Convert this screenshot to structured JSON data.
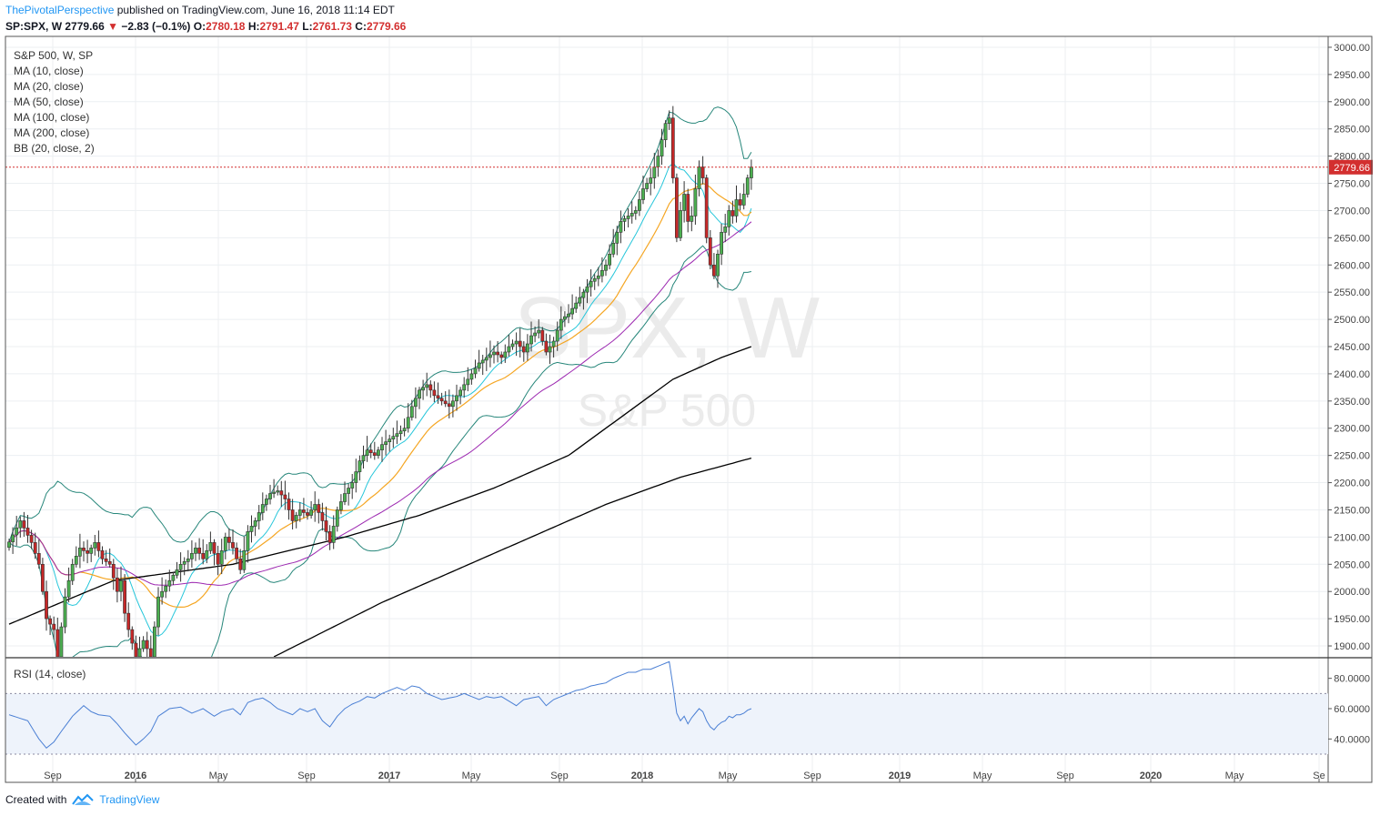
{
  "header": {
    "author": "ThePivotalPerspective",
    "published": "published on TradingView.com, June 16, 2018 11:14 EDT",
    "symbol": "SP:SPX,",
    "interval": "W",
    "last": "2779.66",
    "change": "−2.83 (−0.1%)",
    "o_label": "O:",
    "o_value": "2780.18",
    "h_label": "H:",
    "h_value": "2791.47",
    "l_label": "L:",
    "l_value": "2761.73",
    "c_label": "C:",
    "c_value": "2779.66"
  },
  "legend": [
    "S&P 500, W, SP",
    "MA (10, close)",
    "MA (20, close)",
    "MA (50, close)",
    "MA (100, close)",
    "MA (200, close)",
    "BB (20, close, 2)"
  ],
  "rsi_legend": "RSI (14, close)",
  "watermark": {
    "symbol": "SPX, W",
    "name": "S&P 500"
  },
  "footer": {
    "created": "Created with",
    "brand": "TradingView"
  },
  "colors": {
    "up": "#4caf50",
    "down": "#c62828",
    "ma10": "#26c6da",
    "ma20": "#f5a623",
    "ma50": "#9c27b0",
    "ma100": "#000000",
    "ma200": "#000000",
    "bb": "#26867a",
    "rsi": "#4a7fd4",
    "price_line": "#d32f2f"
  },
  "chart_data": {
    "type": "candlestick",
    "price_axis": {
      "min": 1880,
      "max": 3020,
      "ticks": [
        "3000.00",
        "2950.00",
        "2900.00",
        "2850.00",
        "2800.00",
        "2750.00",
        "2700.00",
        "2650.00",
        "2600.00",
        "2550.00",
        "2500.00",
        "2450.00",
        "2400.00",
        "2350.00",
        "2300.00",
        "2250.00",
        "2200.00",
        "2150.00",
        "2100.00",
        "2050.00",
        "2000.00",
        "1950.00",
        "1900.00"
      ]
    },
    "last_price": 2779.66,
    "last_price_label": "2779.66",
    "rsi_axis": {
      "min": 27,
      "max": 93,
      "ticks": [
        "80.0000",
        "60.0000",
        "40.0000"
      ],
      "overbought": 70,
      "oversold": 30
    },
    "time_labels": [
      "Sep",
      "2016",
      "May",
      "Sep",
      "2017",
      "May",
      "Sep",
      "2018",
      "May",
      "Sep",
      "2019",
      "May",
      "Sep",
      "2020",
      "May",
      "Se"
    ],
    "close_anchors": [
      [
        0,
        2091
      ],
      [
        3,
        2130
      ],
      [
        6,
        2090
      ],
      [
        8,
        2050
      ],
      [
        10,
        1950
      ],
      [
        12,
        1930
      ],
      [
        13,
        1880
      ],
      [
        15,
        1990
      ],
      [
        17,
        2050
      ],
      [
        19,
        2080
      ],
      [
        21,
        2070
      ],
      [
        23,
        2090
      ],
      [
        25,
        2060
      ],
      [
        27,
        2050
      ],
      [
        29,
        2000
      ],
      [
        30,
        2020
      ],
      [
        31,
        1960
      ],
      [
        32,
        1930
      ],
      [
        34,
        1880
      ],
      [
        36,
        1910
      ],
      [
        38,
        1880
      ],
      [
        40,
        1990
      ],
      [
        42,
        2010
      ],
      [
        44,
        2030
      ],
      [
        46,
        2050
      ],
      [
        48,
        2060
      ],
      [
        50,
        2080
      ],
      [
        52,
        2060
      ],
      [
        54,
        2090
      ],
      [
        56,
        2050
      ],
      [
        58,
        2100
      ],
      [
        60,
        2080
      ],
      [
        62,
        2040
      ],
      [
        64,
        2110
      ],
      [
        66,
        2130
      ],
      [
        68,
        2160
      ],
      [
        70,
        2180
      ],
      [
        72,
        2185
      ],
      [
        74,
        2170
      ],
      [
        76,
        2130
      ],
      [
        78,
        2150
      ],
      [
        80,
        2140
      ],
      [
        82,
        2160
      ],
      [
        84,
        2130
      ],
      [
        86,
        2090
      ],
      [
        88,
        2150
      ],
      [
        90,
        2180
      ],
      [
        92,
        2200
      ],
      [
        94,
        2240
      ],
      [
        96,
        2260
      ],
      [
        98,
        2250
      ],
      [
        100,
        2270
      ],
      [
        102,
        2280
      ],
      [
        104,
        2290
      ],
      [
        106,
        2300
      ],
      [
        108,
        2340
      ],
      [
        110,
        2370
      ],
      [
        112,
        2380
      ],
      [
        114,
        2360
      ],
      [
        116,
        2350
      ],
      [
        118,
        2340
      ],
      [
        120,
        2360
      ],
      [
        122,
        2380
      ],
      [
        124,
        2400
      ],
      [
        126,
        2420
      ],
      [
        128,
        2430
      ],
      [
        130,
        2440
      ],
      [
        132,
        2430
      ],
      [
        134,
        2450
      ],
      [
        136,
        2460
      ],
      [
        138,
        2440
      ],
      [
        140,
        2470
      ],
      [
        142,
        2480
      ],
      [
        144,
        2440
      ],
      [
        146,
        2460
      ],
      [
        148,
        2500
      ],
      [
        150,
        2510
      ],
      [
        152,
        2530
      ],
      [
        154,
        2550
      ],
      [
        156,
        2570
      ],
      [
        158,
        2580
      ],
      [
        160,
        2600
      ],
      [
        162,
        2640
      ],
      [
        164,
        2680
      ],
      [
        166,
        2690
      ],
      [
        168,
        2700
      ],
      [
        170,
        2740
      ],
      [
        172,
        2760
      ],
      [
        174,
        2800
      ],
      [
        176,
        2860
      ],
      [
        177,
        2870
      ],
      [
        178,
        2760
      ],
      [
        179,
        2650
      ],
      [
        180,
        2700
      ],
      [
        181,
        2730
      ],
      [
        182,
        2680
      ],
      [
        183,
        2690
      ],
      [
        184,
        2740
      ],
      [
        185,
        2780
      ],
      [
        186,
        2760
      ],
      [
        187,
        2650
      ],
      [
        188,
        2600
      ],
      [
        189,
        2580
      ],
      [
        190,
        2620
      ],
      [
        191,
        2660
      ],
      [
        192,
        2670
      ],
      [
        193,
        2700
      ],
      [
        194,
        2690
      ],
      [
        195,
        2720
      ],
      [
        196,
        2710
      ],
      [
        197,
        2730
      ],
      [
        198,
        2760
      ],
      [
        199,
        2779.66
      ]
    ],
    "ma100_anchors": [
      [
        0,
        1940
      ],
      [
        28,
        2020
      ],
      [
        60,
        2050
      ],
      [
        90,
        2100
      ],
      [
        110,
        2140
      ],
      [
        130,
        2190
      ],
      [
        150,
        2250
      ],
      [
        164,
        2320
      ],
      [
        178,
        2390
      ],
      [
        191,
        2430
      ],
      [
        199,
        2450
      ]
    ],
    "ma200_anchors": [
      [
        71,
        1880
      ],
      [
        100,
        1980
      ],
      [
        130,
        2070
      ],
      [
        160,
        2160
      ],
      [
        180,
        2210
      ],
      [
        199,
        2245
      ]
    ],
    "rsi_anchors": [
      [
        0,
        56
      ],
      [
        5,
        52
      ],
      [
        8,
        40
      ],
      [
        10,
        34
      ],
      [
        12,
        38
      ],
      [
        14,
        45
      ],
      [
        17,
        55
      ],
      [
        20,
        62
      ],
      [
        22,
        58
      ],
      [
        24,
        56
      ],
      [
        27,
        55
      ],
      [
        29,
        50
      ],
      [
        31,
        44
      ],
      [
        34,
        36
      ],
      [
        36,
        40
      ],
      [
        38,
        45
      ],
      [
        40,
        55
      ],
      [
        43,
        60
      ],
      [
        46,
        61
      ],
      [
        49,
        57
      ],
      [
        52,
        60
      ],
      [
        55,
        55
      ],
      [
        57,
        58
      ],
      [
        60,
        60
      ],
      [
        62,
        56
      ],
      [
        64,
        64
      ],
      [
        66,
        66
      ],
      [
        68,
        67
      ],
      [
        70,
        64
      ],
      [
        72,
        60
      ],
      [
        74,
        58
      ],
      [
        76,
        56
      ],
      [
        78,
        60
      ],
      [
        80,
        58
      ],
      [
        82,
        60
      ],
      [
        84,
        52
      ],
      [
        86,
        48
      ],
      [
        88,
        55
      ],
      [
        90,
        60
      ],
      [
        92,
        63
      ],
      [
        94,
        65
      ],
      [
        96,
        68
      ],
      [
        98,
        67
      ],
      [
        100,
        70
      ],
      [
        102,
        72
      ],
      [
        104,
        74
      ],
      [
        106,
        72
      ],
      [
        108,
        75
      ],
      [
        110,
        74
      ],
      [
        112,
        70
      ],
      [
        114,
        68
      ],
      [
        116,
        66
      ],
      [
        118,
        67
      ],
      [
        120,
        68
      ],
      [
        122,
        70
      ],
      [
        124,
        68
      ],
      [
        126,
        66
      ],
      [
        128,
        68
      ],
      [
        130,
        67
      ],
      [
        132,
        68
      ],
      [
        134,
        65
      ],
      [
        136,
        62
      ],
      [
        138,
        66
      ],
      [
        140,
        67
      ],
      [
        142,
        68
      ],
      [
        144,
        62
      ],
      [
        146,
        66
      ],
      [
        148,
        68
      ],
      [
        150,
        70
      ],
      [
        152,
        72
      ],
      [
        154,
        73
      ],
      [
        156,
        75
      ],
      [
        158,
        76
      ],
      [
        160,
        77
      ],
      [
        162,
        80
      ],
      [
        164,
        82
      ],
      [
        166,
        84
      ],
      [
        168,
        84
      ],
      [
        170,
        86
      ],
      [
        172,
        86
      ],
      [
        174,
        88
      ],
      [
        176,
        90
      ],
      [
        177,
        91
      ],
      [
        178,
        75
      ],
      [
        179,
        57
      ],
      [
        180,
        52
      ],
      [
        181,
        55
      ],
      [
        182,
        50
      ],
      [
        183,
        54
      ],
      [
        184,
        57
      ],
      [
        185,
        60
      ],
      [
        186,
        58
      ],
      [
        187,
        52
      ],
      [
        188,
        48
      ],
      [
        189,
        46
      ],
      [
        190,
        49
      ],
      [
        191,
        51
      ],
      [
        192,
        52
      ],
      [
        193,
        55
      ],
      [
        194,
        54
      ],
      [
        195,
        56
      ],
      [
        196,
        56
      ],
      [
        197,
        57
      ],
      [
        198,
        59
      ],
      [
        199,
        60
      ]
    ]
  }
}
